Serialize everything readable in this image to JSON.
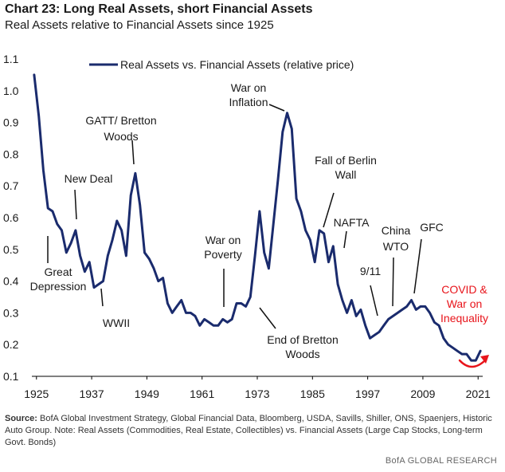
{
  "header": {
    "title": "Chart 23: Long Real Assets, short Financial Assets",
    "subtitle": "Real Assets relative to Financial Assets since 1925"
  },
  "footer": {
    "source_label": "Source:",
    "source_text": "BofA Global Investment Strategy, Global Financial Data, Bloomberg, USDA, Savills, Shiller, ONS, Spaenjers, Historic Auto Group. Note: Real Assets (Commodities, Real Estate, Collectibles) vs. Financial Assets (Large Cap Stocks, Long-term Govt. Bonds)",
    "brand": "BofA GLOBAL RESEARCH"
  },
  "colors": {
    "series": "#1a2b6d",
    "covid": "#e8141b",
    "text": "#1a1a1a"
  },
  "chart_data": {
    "type": "line",
    "title": "Chart 23: Long Real Assets, short Financial Assets",
    "subtitle": "Real Assets relative to Financial Assets since 1925",
    "xlim": [
      1924,
      2022
    ],
    "ylim": [
      0.1,
      1.1
    ],
    "yticks": [
      "0.1",
      "0.2",
      "0.3",
      "0.4",
      "0.5",
      "0.6",
      "0.7",
      "0.8",
      "0.9",
      "1.0",
      "1.1"
    ],
    "xticks": [
      "1925",
      "1937",
      "1949",
      "1961",
      "1973",
      "1985",
      "1997",
      "2009",
      "2021"
    ],
    "legend": {
      "label": "Real Assets vs. Financial Assets (relative price)",
      "position": "top"
    },
    "series": [
      {
        "name": "Real Assets vs. Financial Assets (relative price)",
        "x": [
          1924.5,
          1925.5,
          1926.5,
          1927.5,
          1928.5,
          1929.5,
          1930.5,
          1931.5,
          1932.5,
          1933.5,
          1934.5,
          1935.5,
          1936.5,
          1937.5,
          1938.5,
          1939.5,
          1940.5,
          1941.5,
          1942.5,
          1943.5,
          1944.5,
          1945.5,
          1946.5,
          1947.5,
          1948.5,
          1949.5,
          1950.5,
          1951.5,
          1952.5,
          1953.5,
          1954.5,
          1955.5,
          1956.5,
          1957.5,
          1958.5,
          1959.5,
          1960.5,
          1961.5,
          1962.5,
          1963.5,
          1964.5,
          1965.5,
          1966.5,
          1967.5,
          1968.5,
          1969.5,
          1970.5,
          1971.5,
          1972.5,
          1973.5,
          1974.5,
          1975.5,
          1976.5,
          1977.5,
          1978.5,
          1979.5,
          1980.5,
          1981.5,
          1982.5,
          1983.5,
          1984.5,
          1985.5,
          1986.5,
          1987.5,
          1988.5,
          1989.5,
          1990.5,
          1991.5,
          1992.5,
          1993.5,
          1994.5,
          1995.5,
          1996.5,
          1997.5,
          1998.5,
          1999.5,
          2000.5,
          2001.5,
          2002.5,
          2003.5,
          2004.5,
          2005.5,
          2006.5,
          2007.5,
          2008.5,
          2009.5,
          2010.5,
          2011.5,
          2012.5,
          2013.5,
          2014.5,
          2015.5,
          2016.5,
          2017.5,
          2018.5,
          2019.5,
          2020.5,
          2021.5
        ],
        "values": [
          1.05,
          0.92,
          0.75,
          0.63,
          0.62,
          0.58,
          0.56,
          0.49,
          0.52,
          0.56,
          0.48,
          0.43,
          0.46,
          0.38,
          0.39,
          0.4,
          0.48,
          0.53,
          0.59,
          0.56,
          0.48,
          0.67,
          0.74,
          0.64,
          0.49,
          0.47,
          0.44,
          0.4,
          0.41,
          0.33,
          0.3,
          0.32,
          0.34,
          0.3,
          0.3,
          0.29,
          0.26,
          0.28,
          0.27,
          0.26,
          0.26,
          0.28,
          0.27,
          0.28,
          0.33,
          0.33,
          0.32,
          0.35,
          0.48,
          0.62,
          0.49,
          0.44,
          0.58,
          0.72,
          0.87,
          0.93,
          0.88,
          0.66,
          0.62,
          0.56,
          0.53,
          0.46,
          0.56,
          0.55,
          0.46,
          0.51,
          0.39,
          0.34,
          0.3,
          0.34,
          0.29,
          0.31,
          0.26,
          0.22,
          0.23,
          0.24,
          0.26,
          0.28,
          0.29,
          0.3,
          0.31,
          0.32,
          0.34,
          0.31,
          0.32,
          0.32,
          0.3,
          0.27,
          0.26,
          0.22,
          0.2,
          0.19,
          0.18,
          0.17,
          0.17,
          0.15,
          0.15,
          0.18
        ]
      }
    ],
    "annotations": [
      {
        "id": "great-depression",
        "lines": [
          "Great",
          "Depression"
        ]
      },
      {
        "id": "new-deal",
        "lines": [
          "New Deal"
        ]
      },
      {
        "id": "wwii",
        "lines": [
          "WWII"
        ]
      },
      {
        "id": "gatt",
        "lines": [
          "GATT/ Bretton",
          "Woods"
        ]
      },
      {
        "id": "war-on-poverty",
        "lines": [
          "War on",
          "Poverty"
        ]
      },
      {
        "id": "war-on-inflation",
        "lines": [
          "War on",
          "Inflation"
        ]
      },
      {
        "id": "end-bretton",
        "lines": [
          "End of Bretton",
          "Woods"
        ]
      },
      {
        "id": "berlin",
        "lines": [
          "Fall of Berlin",
          "Wall"
        ]
      },
      {
        "id": "nafta",
        "lines": [
          "NAFTA"
        ]
      },
      {
        "id": "nine-eleven",
        "lines": [
          "9/11"
        ]
      },
      {
        "id": "china-wto",
        "lines": [
          "China",
          "WTO"
        ]
      },
      {
        "id": "gfc",
        "lines": [
          "GFC"
        ]
      },
      {
        "id": "covid",
        "lines": [
          "COVID &",
          "War on",
          "Inequality"
        ]
      }
    ]
  }
}
